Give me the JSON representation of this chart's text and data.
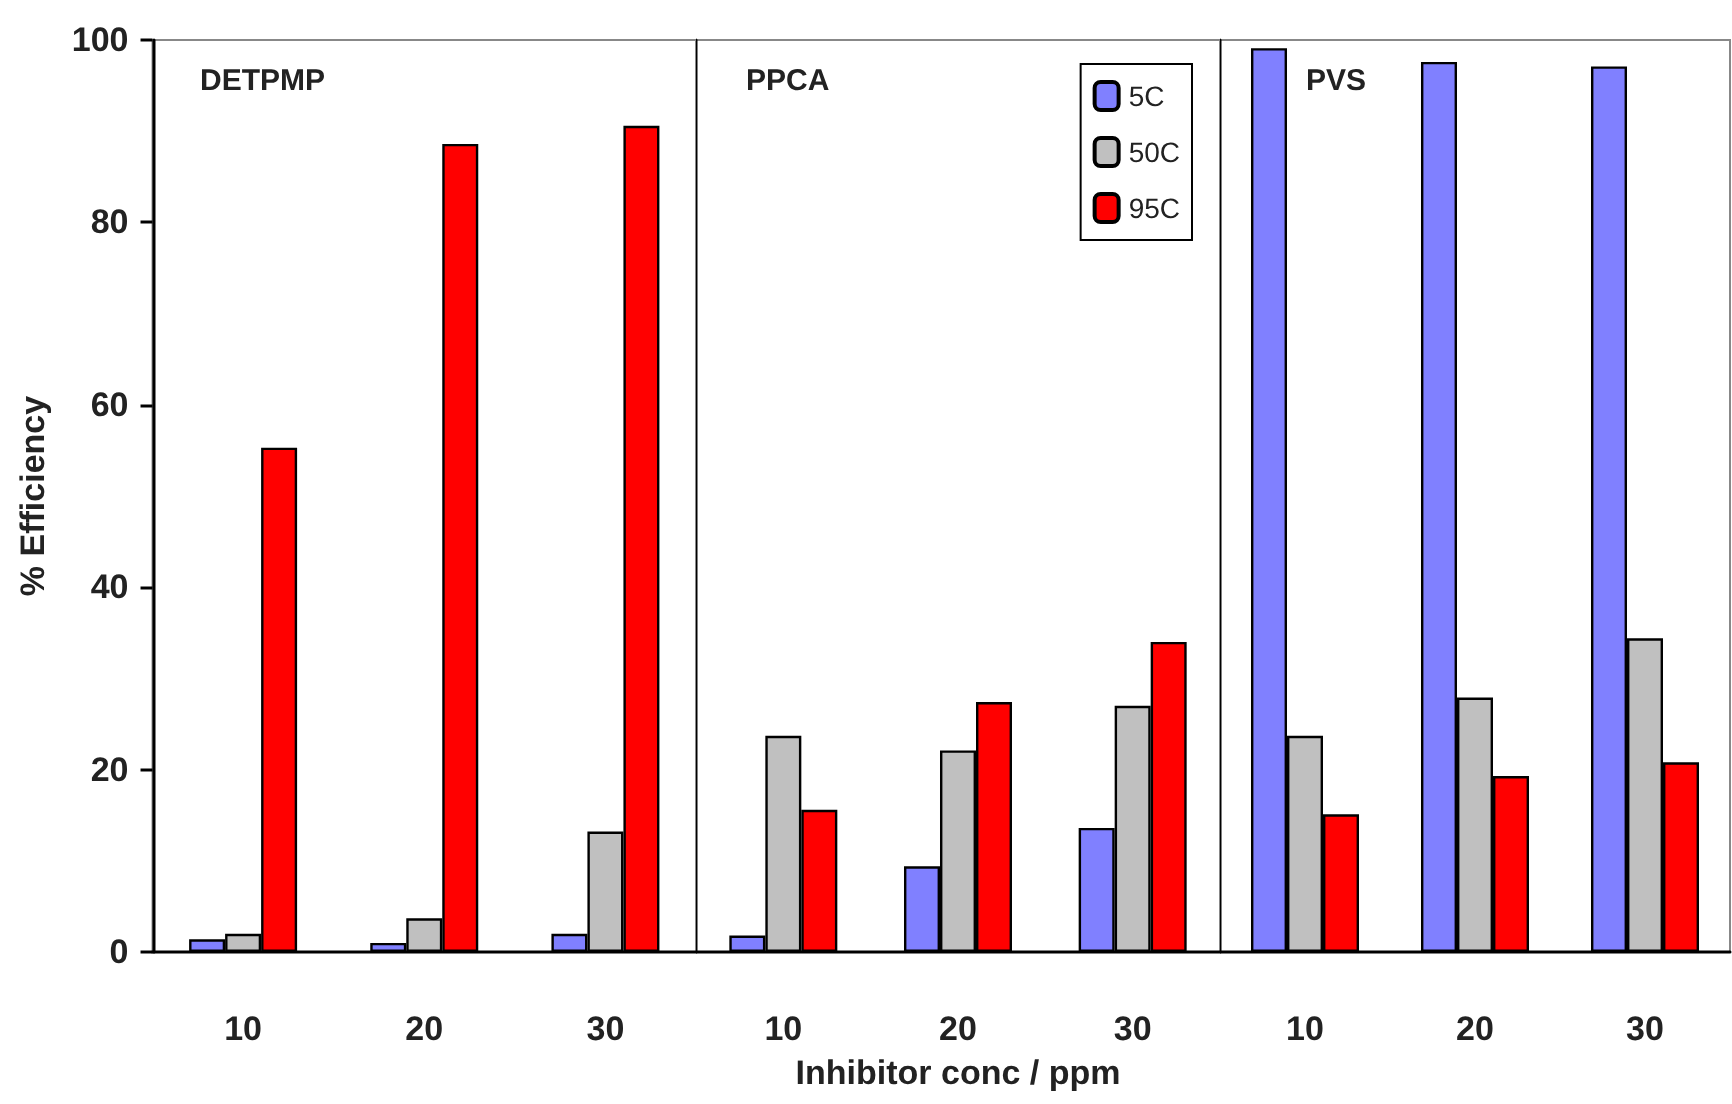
{
  "chart_data": [
    {
      "type": "bar",
      "title": "DETPMP",
      "ylabel": "% Efficiency",
      "categories": [
        "10",
        "20",
        "30"
      ],
      "ylim": [
        0,
        100
      ],
      "yticks": [
        0,
        20,
        40,
        60,
        80,
        100
      ],
      "grid": false,
      "legend": false,
      "series": [
        {
          "color": "#8080ff",
          "values": [
            1.4,
            1,
            2
          ]
        },
        {
          "color": "#c0c0c0",
          "values": [
            2,
            3.7,
            13.2
          ]
        },
        {
          "color": "#ff0000",
          "values": [
            55.3,
            88.6,
            90.6
          ]
        }
      ]
    },
    {
      "type": "bar",
      "title": "PPCA",
      "xlabel": "Inhibitor conc / ppm",
      "categories": [
        "10",
        "20",
        "30"
      ],
      "ylim": [
        0,
        100
      ],
      "yticks": [
        0,
        20,
        40,
        60,
        80,
        100
      ],
      "tick_labels": "x",
      "grid": false,
      "legend": "top right",
      "series": [
        {
          "name": "5C",
          "color": "#8080ff",
          "values": [
            1.8,
            9.4,
            13.6
          ]
        },
        {
          "name": "50C",
          "color": "#c0c0c0",
          "values": [
            23.7,
            22.1,
            27
          ]
        },
        {
          "name": "95C",
          "color": "#ff0000",
          "values": [
            15.6,
            27.4,
            34
          ]
        }
      ]
    },
    {
      "type": "bar",
      "title": "PVS",
      "categories": [
        "10",
        "20",
        "30"
      ],
      "ylim": [
        0,
        100
      ],
      "yticks": [
        0,
        20,
        40,
        60,
        80,
        100
      ],
      "tick_labels": "x",
      "grid": false,
      "legend": false,
      "series": [
        {
          "color": "#8080ff",
          "values": [
            99.1,
            97.6,
            97.1
          ]
        },
        {
          "color": "#c0c0c0",
          "values": [
            23.7,
            27.9,
            34.4
          ]
        },
        {
          "color": "#ff0000",
          "values": [
            15.1,
            19.3,
            20.8
          ]
        }
      ]
    }
  ]
}
